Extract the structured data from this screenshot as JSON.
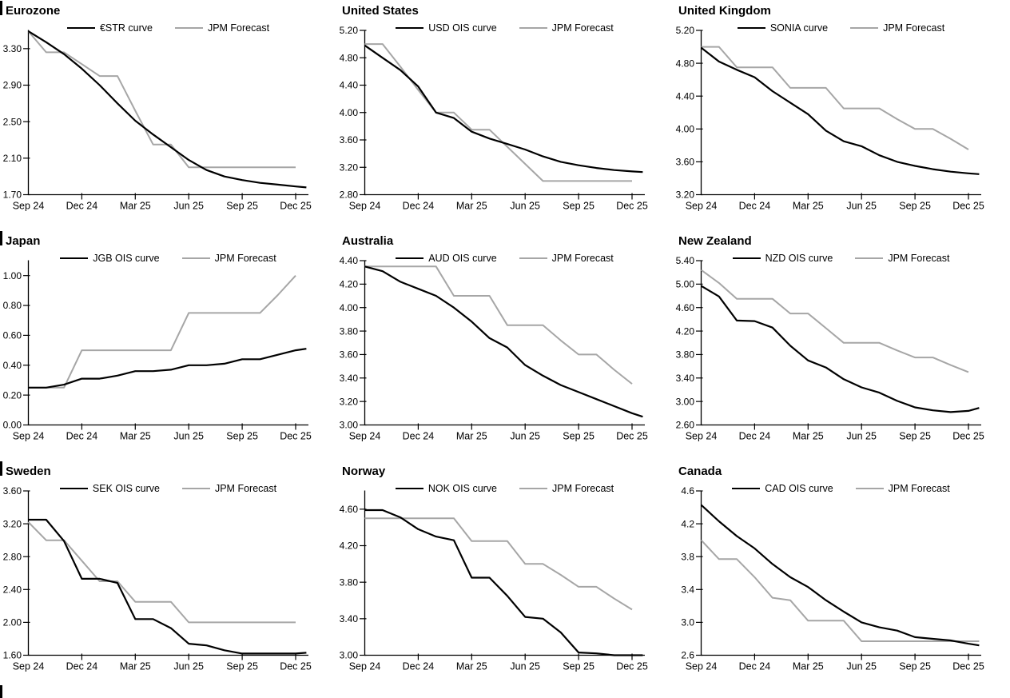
{
  "page": {
    "background": "#ffffff"
  },
  "colors": {
    "curve": "#000000",
    "forecast": "#a6a6a6",
    "axis": "#000000"
  },
  "x_axis": {
    "interval": "monthly",
    "start": "Sep 24",
    "end": "Dec 25"
  },
  "chart_data": [
    {
      "type": "line",
      "title": "Eurozone",
      "left_section_bar": true,
      "x_tick_labels": [
        "Sep 24",
        "Dec 24",
        "Mar 25",
        "Jun 25",
        "Sep 25",
        "Dec 25"
      ],
      "ylim": [
        1.7,
        3.5
      ],
      "yticks": [
        "3.30",
        "2.90",
        "2.50",
        "2.10",
        "1.70"
      ],
      "series": [
        {
          "name": "€STR curve",
          "color": "#000000",
          "values": [
            3.49,
            3.37,
            3.24,
            3.08,
            2.9,
            2.7,
            2.51,
            2.36,
            2.22,
            2.08,
            1.97,
            1.9,
            1.86,
            1.83,
            1.81,
            1.79
          ],
          "end_extension": 1.78
        },
        {
          "name": "JPM Forecast",
          "color": "#a6a6a6",
          "values": [
            3.49,
            3.26,
            3.26,
            3.13,
            3.0,
            3.0,
            2.62,
            2.25,
            2.25,
            2.0,
            2.0,
            2.0,
            2.0,
            2.0,
            2.0,
            2.0
          ],
          "end_extension": null
        }
      ]
    },
    {
      "type": "line",
      "title": "United States",
      "left_section_bar": false,
      "x_tick_labels": [
        "Sep 24",
        "Dec 24",
        "Mar 25",
        "Jun 25",
        "Sep 25",
        "Dec 25"
      ],
      "ylim": [
        2.8,
        5.2
      ],
      "yticks": [
        "5.20",
        "4.80",
        "4.40",
        "4.00",
        "3.60",
        "3.20",
        "2.80"
      ],
      "series": [
        {
          "name": "USD OIS curve",
          "color": "#000000",
          "values": [
            4.98,
            4.8,
            4.62,
            4.38,
            4.0,
            3.92,
            3.72,
            3.62,
            3.54,
            3.46,
            3.36,
            3.28,
            3.23,
            3.19,
            3.16,
            3.14
          ],
          "end_extension": 3.13
        },
        {
          "name": "JPM Forecast",
          "color": "#a6a6a6",
          "values": [
            5.0,
            5.0,
            4.67,
            4.33,
            4.0,
            4.0,
            3.75,
            3.75,
            3.5,
            3.25,
            3.0,
            3.0,
            3.0,
            3.0,
            3.0,
            3.0
          ],
          "end_extension": null
        }
      ]
    },
    {
      "type": "line",
      "title": "United Kingdom",
      "left_section_bar": false,
      "x_tick_labels": [
        "Sep 24",
        "Dec 24",
        "Mar 25",
        "Jun 25",
        "Sep 25",
        "Dec 25"
      ],
      "ylim": [
        3.2,
        5.2
      ],
      "yticks": [
        "5.20",
        "4.80",
        "4.40",
        "4.00",
        "3.60",
        "3.20"
      ],
      "series": [
        {
          "name": "SONIA curve",
          "color": "#000000",
          "values": [
            4.99,
            4.82,
            4.72,
            4.63,
            4.46,
            4.32,
            4.18,
            3.98,
            3.85,
            3.79,
            3.68,
            3.6,
            3.55,
            3.51,
            3.48,
            3.46
          ],
          "end_extension": 3.45
        },
        {
          "name": "JPM Forecast",
          "color": "#a6a6a6",
          "values": [
            5.0,
            5.0,
            4.75,
            4.75,
            4.75,
            4.5,
            4.5,
            4.5,
            4.25,
            4.25,
            4.25,
            4.12,
            4.0,
            4.0,
            3.88,
            3.75
          ],
          "end_extension": null
        }
      ]
    },
    {
      "type": "line",
      "title": "Japan",
      "left_section_bar": true,
      "x_tick_labels": [
        "Sep 24",
        "Dec 24",
        "Mar 25",
        "Jun 25",
        "Sep 25",
        "Dec 25"
      ],
      "ylim": [
        0.0,
        1.1
      ],
      "yticks": [
        "1.00",
        "0.80",
        "0.60",
        "0.40",
        "0.20",
        "0.00"
      ],
      "series": [
        {
          "name": "JGB OIS curve",
          "color": "#000000",
          "values": [
            0.25,
            0.25,
            0.27,
            0.31,
            0.31,
            0.33,
            0.36,
            0.36,
            0.37,
            0.4,
            0.4,
            0.41,
            0.44,
            0.44,
            0.47,
            0.5
          ],
          "end_extension": 0.51
        },
        {
          "name": "JPM Forecast",
          "color": "#a6a6a6",
          "values": [
            0.25,
            0.25,
            0.25,
            0.5,
            0.5,
            0.5,
            0.5,
            0.5,
            0.5,
            0.75,
            0.75,
            0.75,
            0.75,
            0.75,
            0.87,
            1.0
          ],
          "end_extension": null
        }
      ]
    },
    {
      "type": "line",
      "title": "Australia",
      "left_section_bar": false,
      "x_tick_labels": [
        "Sep 24",
        "Dec 24",
        "Mar 25",
        "Jun 25",
        "Sep 25",
        "Dec 25"
      ],
      "ylim": [
        3.0,
        4.4
      ],
      "yticks": [
        "4.40",
        "4.20",
        "4.00",
        "3.80",
        "3.60",
        "3.40",
        "3.20",
        "3.00"
      ],
      "series": [
        {
          "name": "AUD OIS curve",
          "color": "#000000",
          "values": [
            4.35,
            4.31,
            4.22,
            4.16,
            4.1,
            4.0,
            3.88,
            3.74,
            3.66,
            3.51,
            3.42,
            3.34,
            3.28,
            3.22,
            3.16,
            3.1
          ],
          "end_extension": 3.07
        },
        {
          "name": "JPM Forecast",
          "color": "#a6a6a6",
          "values": [
            4.35,
            4.35,
            4.35,
            4.35,
            4.35,
            4.1,
            4.1,
            4.1,
            3.85,
            3.85,
            3.85,
            3.72,
            3.6,
            3.6,
            3.47,
            3.35
          ],
          "end_extension": null
        }
      ]
    },
    {
      "type": "line",
      "title": "New Zealand",
      "left_section_bar": false,
      "x_tick_labels": [
        "Sep 24",
        "Dec 24",
        "Mar 25",
        "Jun 25",
        "Sep 25",
        "Dec 25"
      ],
      "ylim": [
        2.6,
        5.4
      ],
      "yticks": [
        "5.40",
        "5.00",
        "4.60",
        "4.20",
        "3.80",
        "3.40",
        "3.00",
        "2.60"
      ],
      "series": [
        {
          "name": "NZD OIS curve",
          "color": "#000000",
          "values": [
            4.97,
            4.79,
            4.38,
            4.37,
            4.26,
            3.95,
            3.7,
            3.58,
            3.38,
            3.24,
            3.15,
            3.01,
            2.9,
            2.85,
            2.82,
            2.84
          ],
          "end_extension": 2.89
        },
        {
          "name": "JPM Forecast",
          "color": "#a6a6a6",
          "values": [
            5.24,
            5.02,
            4.75,
            4.75,
            4.75,
            4.5,
            4.5,
            4.25,
            4.0,
            4.0,
            4.0,
            3.87,
            3.75,
            3.75,
            3.62,
            3.5
          ],
          "end_extension": null
        }
      ]
    },
    {
      "type": "line",
      "title": "Sweden",
      "left_section_bar": true,
      "x_tick_labels": [
        "Sep 24",
        "Dec 24",
        "Mar 25",
        "Jun 25",
        "Sep 25",
        "Dec 25"
      ],
      "ylim": [
        1.6,
        3.6
      ],
      "yticks": [
        "3.60",
        "3.20",
        "2.80",
        "2.40",
        "2.00",
        "1.60"
      ],
      "series": [
        {
          "name": "SEK OIS curve",
          "color": "#000000",
          "values": [
            3.25,
            3.25,
            2.99,
            2.53,
            2.53,
            2.48,
            2.04,
            2.04,
            1.93,
            1.74,
            1.72,
            1.66,
            1.62,
            1.62,
            1.62,
            1.62
          ],
          "end_extension": 1.63
        },
        {
          "name": "JPM Forecast",
          "color": "#a6a6a6",
          "values": [
            3.22,
            3.0,
            3.0,
            2.75,
            2.5,
            2.5,
            2.25,
            2.25,
            2.25,
            2.0,
            2.0,
            2.0,
            2.0,
            2.0,
            2.0,
            2.0
          ],
          "end_extension": null
        }
      ]
    },
    {
      "type": "line",
      "title": "Norway",
      "left_section_bar": false,
      "x_tick_labels": [
        "Sep 24",
        "Dec 24",
        "Mar 25",
        "Jun 25",
        "Sep 25",
        "Dec 25"
      ],
      "ylim": [
        3.0,
        4.8
      ],
      "yticks": [
        "4.60",
        "4.20",
        "3.80",
        "3.40",
        "3.00"
      ],
      "series": [
        {
          "name": "NOK OIS curve",
          "color": "#000000",
          "values": [
            4.59,
            4.59,
            4.51,
            4.38,
            4.3,
            4.26,
            3.85,
            3.85,
            3.65,
            3.42,
            3.4,
            3.25,
            3.03,
            3.02,
            3.0,
            3.0
          ],
          "end_extension": 3.0
        },
        {
          "name": "JPM Forecast",
          "color": "#a6a6a6",
          "values": [
            4.5,
            4.5,
            4.5,
            4.5,
            4.5,
            4.5,
            4.25,
            4.25,
            4.25,
            4.0,
            4.0,
            3.88,
            3.75,
            3.75,
            3.62,
            3.5
          ],
          "end_extension": null
        }
      ]
    },
    {
      "type": "line",
      "title": "Canada",
      "left_section_bar": false,
      "x_tick_labels": [
        "Sep 24",
        "Dec 24",
        "Mar 25",
        "Jun 25",
        "Sep 25",
        "Dec 25"
      ],
      "ylim": [
        2.6,
        4.6
      ],
      "yticks": [
        "4.6",
        "4.2",
        "3.8",
        "3.4",
        "3.0",
        "2.6"
      ],
      "series": [
        {
          "name": "CAD OIS curve",
          "color": "#000000",
          "values": [
            4.43,
            4.23,
            4.05,
            3.9,
            3.71,
            3.55,
            3.43,
            3.27,
            3.13,
            3.0,
            2.94,
            2.9,
            2.82,
            2.8,
            2.78,
            2.74
          ],
          "end_extension": 2.72
        },
        {
          "name": "JPM Forecast",
          "color": "#a6a6a6",
          "values": [
            4.0,
            3.77,
            3.77,
            3.55,
            3.3,
            3.27,
            3.02,
            3.02,
            3.02,
            2.77,
            2.77,
            2.77,
            2.77,
            2.77,
            2.77,
            2.77
          ],
          "end_extension": 2.77
        }
      ]
    }
  ]
}
